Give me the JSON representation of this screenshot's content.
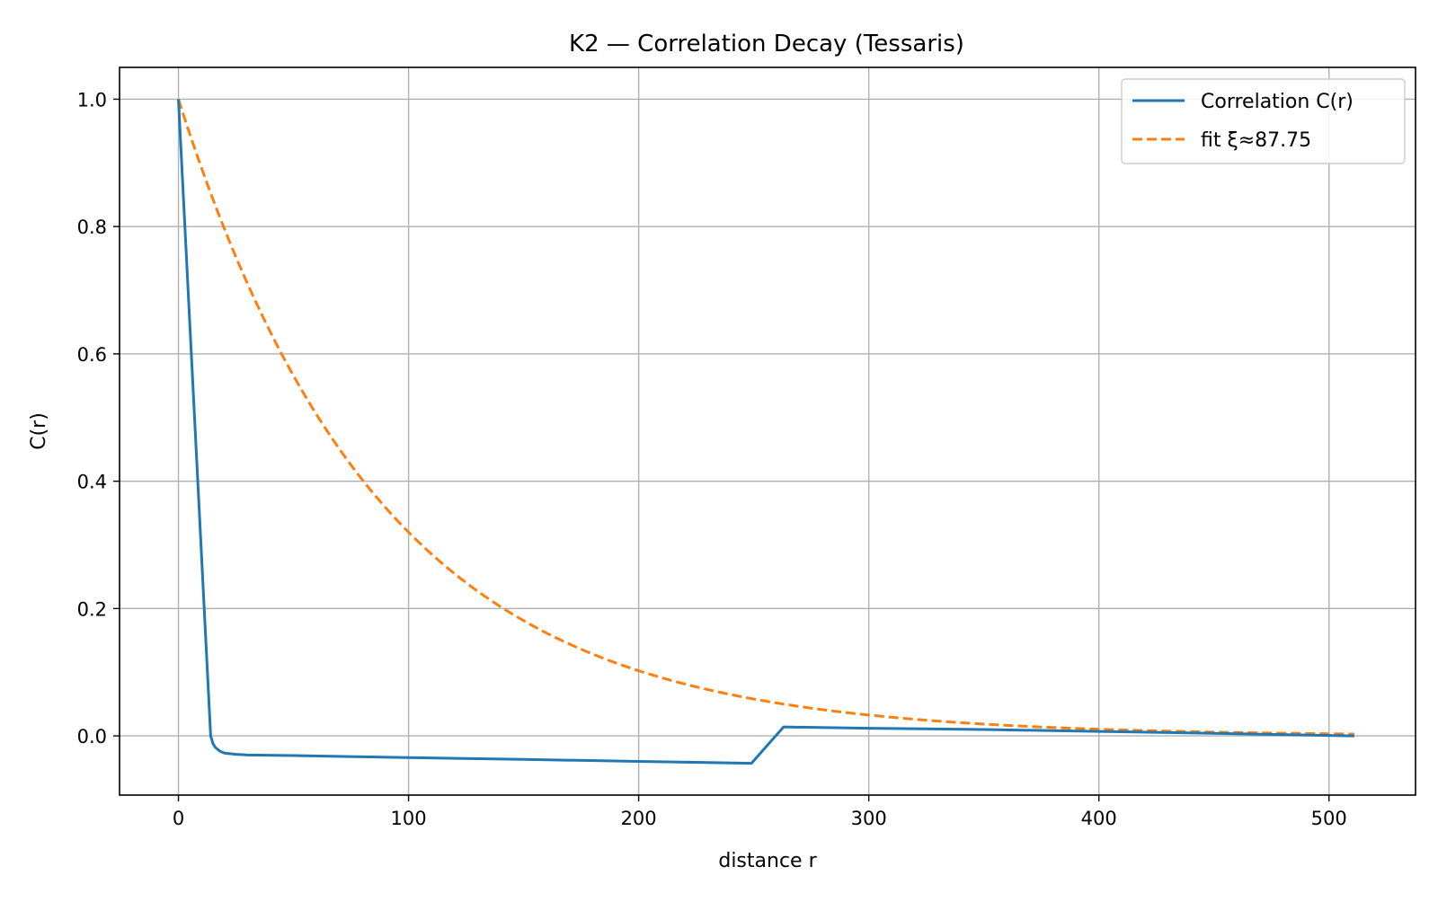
{
  "chart_data": {
    "type": "line",
    "title": "K2 — Correlation Decay (Tessaris)",
    "xlabel": "distance r",
    "ylabel": "C(r)",
    "xlim": [
      -25.6,
      537.6
    ],
    "ylim": [
      -0.093,
      1.05
    ],
    "x_ticks": [
      0,
      100,
      200,
      300,
      400,
      500
    ],
    "x_tick_labels": [
      "0",
      "100",
      "200",
      "300",
      "400",
      "500"
    ],
    "y_ticks": [
      0.0,
      0.2,
      0.4,
      0.6,
      0.8,
      1.0
    ],
    "y_tick_labels": [
      "0.0",
      "0.2",
      "0.4",
      "0.6",
      "0.8",
      "1.0"
    ],
    "grid": true,
    "legend_position": "top-right",
    "colors": {
      "correlation": "#1f77b4",
      "fit": "#ff7f0e"
    },
    "series": [
      {
        "name": "Correlation C(r)",
        "style": "solid",
        "color": "#1f77b4",
        "x": [
          0,
          14,
          15,
          16,
          18,
          20,
          25,
          30,
          50,
          100,
          150,
          200,
          249,
          263,
          300,
          350,
          400,
          450,
          511
        ],
        "y": [
          1.0,
          0.0,
          -0.012,
          -0.018,
          -0.024,
          -0.027,
          -0.029,
          -0.03,
          -0.031,
          -0.034,
          -0.037,
          -0.04,
          -0.043,
          0.014,
          0.012,
          0.01,
          0.007,
          0.004,
          0.0
        ]
      },
      {
        "name": "fit ξ≈87.75",
        "style": "dashed",
        "color": "#ff7f0e",
        "xi": 87.75,
        "x_range": [
          0,
          511
        ]
      }
    ]
  }
}
